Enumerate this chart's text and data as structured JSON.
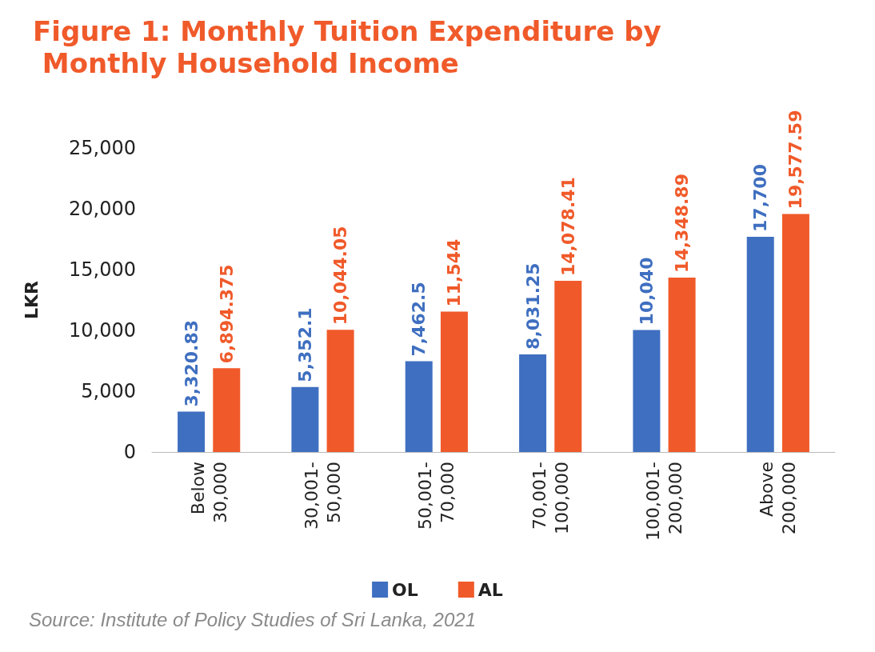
{
  "chart_data": {
    "type": "bar",
    "title": "Figure 1: Monthly Tuition Expenditure by Monthly Household Income",
    "ylabel": "LKR",
    "categories": [
      "Below\n30,000",
      "30,001-\n50,000",
      "50,001-\n70,000",
      "70,001-\n100,000",
      "100,001-\n200,000",
      "Above\n200,000"
    ],
    "series": [
      {
        "name": "OL",
        "color": "#3f6fc0",
        "values": [
          3320.83,
          5352.1,
          7462.5,
          8031.25,
          10040,
          17700
        ],
        "value_labels": [
          "3,320.83",
          "5,352.1",
          "7,462.5",
          "8,031.25",
          "10,040",
          "17,700"
        ]
      },
      {
        "name": "AL",
        "color": "#f05a2a",
        "values": [
          6894.375,
          10044.05,
          11544,
          14078.41,
          14348.89,
          19577.59
        ],
        "value_labels": [
          "6,894.375",
          "10,044.05",
          "11,544",
          "14,078.41",
          "14,348.89",
          "19,577.59"
        ]
      }
    ],
    "ylim": [
      0,
      25000
    ],
    "yticks": [
      0,
      {
        "value": 5000,
        "label": "5,000"
      },
      {
        "value": 10000,
        "label": "10,000"
      },
      {
        "value": 15000,
        "label": "15,000"
      },
      {
        "value": 20000,
        "label": "20,000"
      },
      {
        "value": 25000,
        "label": "25,000"
      }
    ],
    "grid": false,
    "legend": "bottom",
    "annotations": [
      "Source: Institute of Policy Studies of Sri Lanka, 2021"
    ]
  }
}
